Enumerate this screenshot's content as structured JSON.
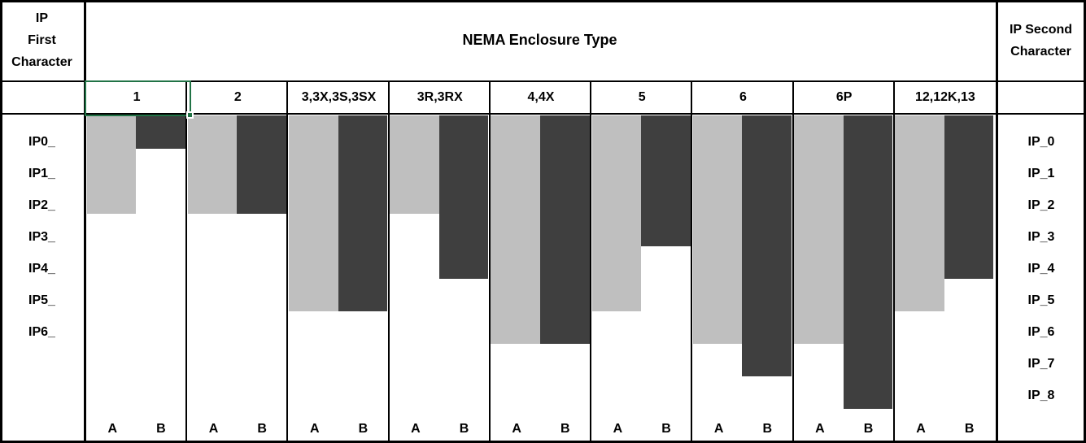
{
  "header": {
    "left": "IP\nFirst\nCharacter",
    "center": "NEMA Enclosure Type",
    "right": "IP Second\nCharacter"
  },
  "chart_data": {
    "type": "bar",
    "title": "NEMA Enclosure Type",
    "description": "Comparison table of NEMA enclosure types to IEC IP ratings. Paired bars hang from the top of the grid; bar A shows the IP first-character level reached, bar B the IP second-character level reached.",
    "categories": [
      "1",
      "2",
      "3,3X,3S,3SX",
      "3R,3RX",
      "4,4X",
      "5",
      "6",
      "6P",
      "12,12K,13"
    ],
    "bar_pair_labels": [
      "A",
      "B"
    ],
    "left_row_labels": [
      "IP0_",
      "IP1_",
      "IP2_",
      "IP3_",
      "IP4_",
      "IP5_",
      "IP6_"
    ],
    "right_row_labels": [
      "IP_0",
      "IP_1",
      "IP_2",
      "IP_3",
      "IP_4",
      "IP_5",
      "IP_6",
      "IP_7",
      "IP_8"
    ],
    "series": [
      {
        "name": "A (IP first character)",
        "color": "#BFBFBF",
        "values": [
          2,
          2,
          5,
          2,
          6,
          5,
          6,
          6,
          5
        ]
      },
      {
        "name": "B (IP second character)",
        "color": "#3F3F3F",
        "values": [
          0,
          2,
          5,
          4,
          6,
          3,
          7,
          8,
          4
        ]
      }
    ],
    "ip_equivalents": [
      "IP20",
      "IP22",
      "IP55",
      "IP24",
      "IP66",
      "IP53",
      "IP67",
      "IP68",
      "IP54"
    ],
    "layout": {
      "bars_hang_from_top": true,
      "grid": "black table borders",
      "legend": "none"
    },
    "colors": {
      "bar_a": "#BFBFBF",
      "bar_b": "#3F3F3F",
      "border": "#000000",
      "background": "#FFFFFF",
      "selection": "#217346"
    },
    "selection": {
      "selected_column_header": "1"
    }
  }
}
